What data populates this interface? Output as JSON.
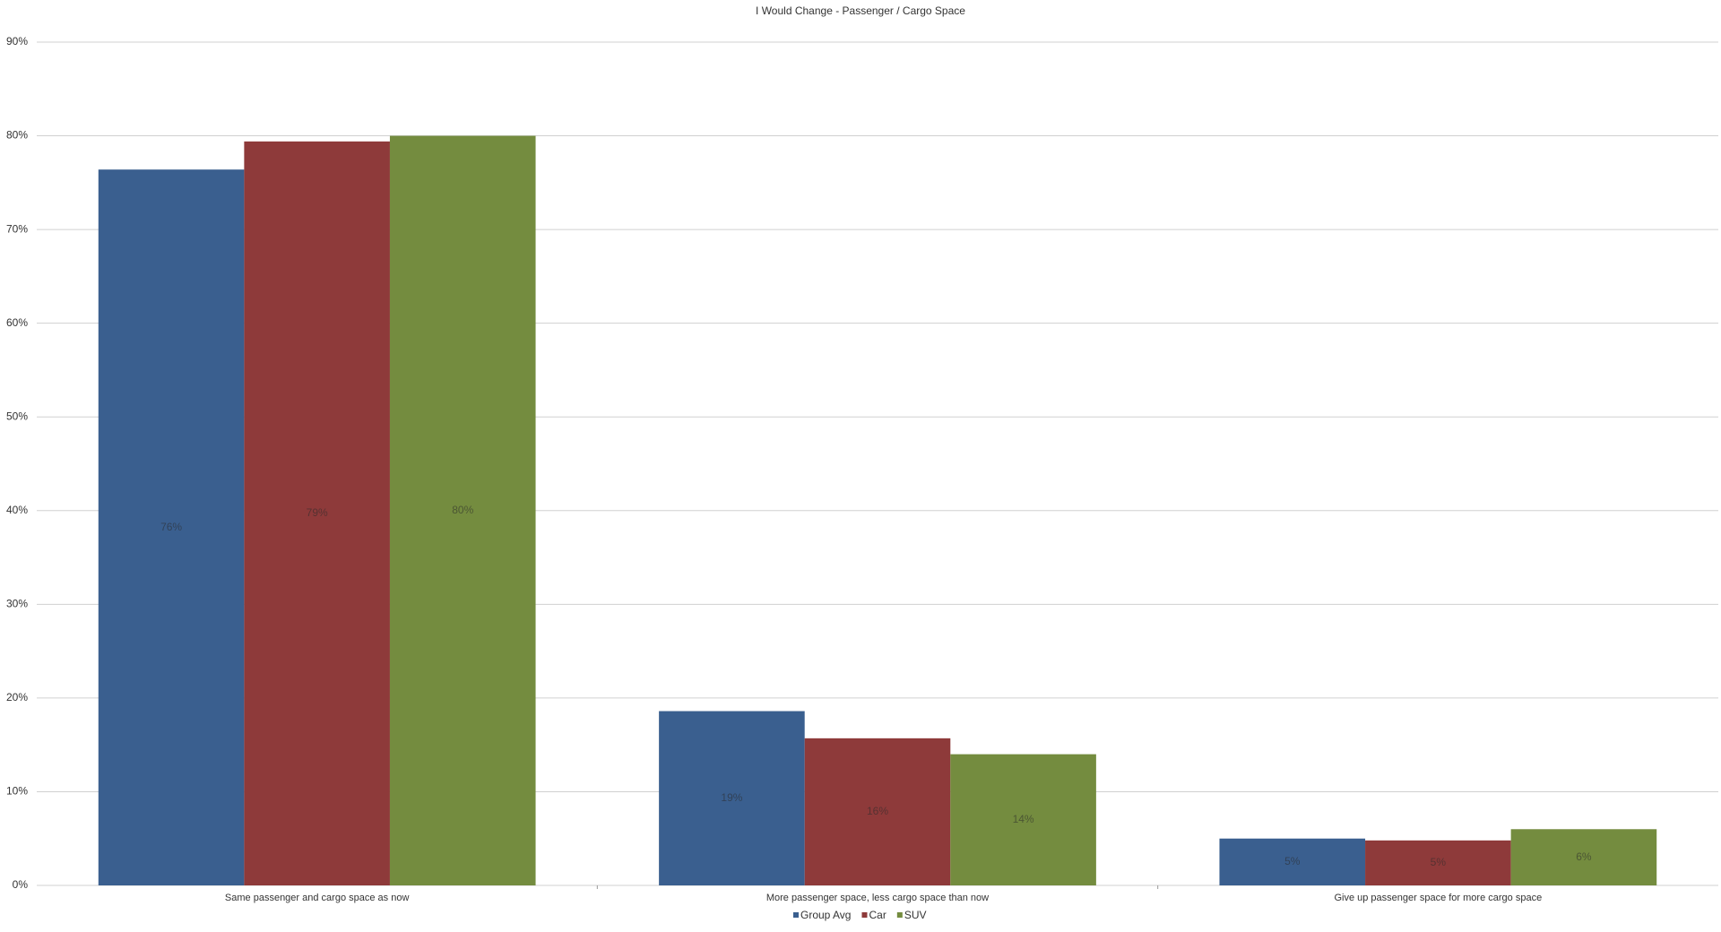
{
  "chart_data": {
    "type": "bar",
    "title": "I Would Change - Passenger / Cargo Space",
    "categories": [
      "Same passenger and cargo space as now",
      "More passenger space, less cargo space than now",
      "Give up passenger space for more cargo space"
    ],
    "series": [
      {
        "name": "Group Avg",
        "color": "#3a5f8f",
        "values": [
          76.4,
          18.6,
          5.0
        ],
        "value_labels": [
          "76%",
          "19%",
          "5%"
        ]
      },
      {
        "name": "Car",
        "color": "#8e3a3a",
        "values": [
          79.4,
          15.7,
          4.8
        ],
        "value_labels": [
          "79%",
          "16%",
          "5%"
        ]
      },
      {
        "name": "SUV",
        "color": "#748c3f",
        "values": [
          80,
          14,
          6
        ],
        "value_labels": [
          "80%",
          "14%",
          "6%"
        ]
      }
    ],
    "ylim": [
      0,
      90
    ],
    "yticks": [
      {
        "value": 0,
        "label": "0%"
      },
      {
        "value": 10,
        "label": "10%"
      },
      {
        "value": 20,
        "label": "20%"
      },
      {
        "value": 30,
        "label": "30%"
      },
      {
        "value": 40,
        "label": "40%"
      },
      {
        "value": 50,
        "label": "50%"
      },
      {
        "value": 60,
        "label": "60%"
      },
      {
        "value": 70,
        "label": "70%"
      },
      {
        "value": 80,
        "label": "80%"
      },
      {
        "value": 90,
        "label": "90%"
      }
    ],
    "grid": true,
    "legend": "bottom"
  }
}
